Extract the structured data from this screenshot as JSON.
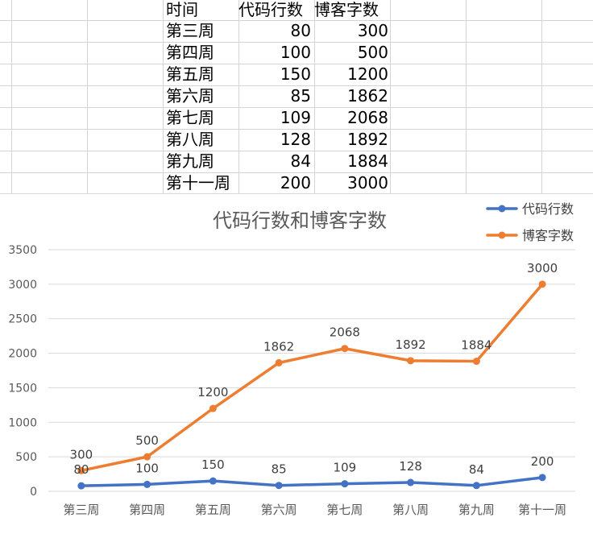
{
  "sheet": {
    "headers": [
      "时间",
      "代码行数",
      "博客字数"
    ],
    "rows": [
      {
        "label": "第三周",
        "code": "80",
        "words": "300"
      },
      {
        "label": "第四周",
        "code": "100",
        "words": "500"
      },
      {
        "label": "第五周",
        "code": "150",
        "words": "1200"
      },
      {
        "label": "第六周",
        "code": "85",
        "words": "1862"
      },
      {
        "label": "第七周",
        "code": "109",
        "words": "2068"
      },
      {
        "label": "第八周",
        "code": "128",
        "words": "1892"
      },
      {
        "label": "第九周",
        "code": "84",
        "words": "1884"
      },
      {
        "label": "第十一周",
        "code": "200",
        "words": "3000"
      }
    ]
  },
  "chart_data": {
    "type": "line",
    "title": "代码行数和博客字数",
    "categories": [
      "第三周",
      "第四周",
      "第五周",
      "第六周",
      "第七周",
      "第八周",
      "第九周",
      "第十一周"
    ],
    "series": [
      {
        "name": "代码行数",
        "color": "#4472c4",
        "values": [
          80,
          100,
          150,
          85,
          109,
          128,
          84,
          200
        ]
      },
      {
        "name": "博客字数",
        "color": "#ed7d31",
        "values": [
          300,
          500,
          1200,
          1862,
          2068,
          1892,
          1884,
          3000
        ]
      }
    ],
    "ylim": [
      0,
      3500
    ],
    "yticks": [
      0,
      500,
      1000,
      1500,
      2000,
      2500,
      3000,
      3500
    ],
    "grid": true,
    "legend": "top-right",
    "data_labels": true
  }
}
